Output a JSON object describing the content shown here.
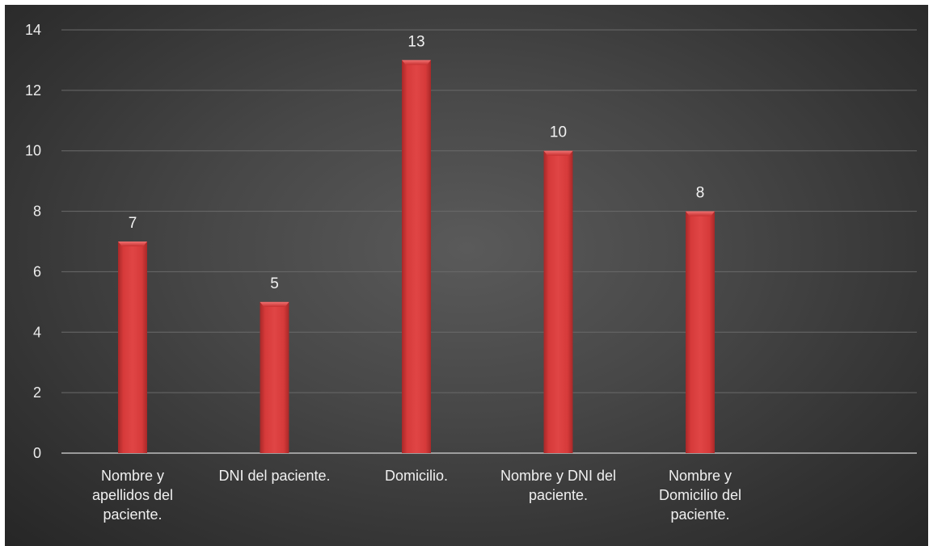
{
  "chart_data": {
    "type": "bar",
    "categories": [
      "Nombre y apellidos del paciente.",
      "DNI del paciente.",
      "Domicilio.",
      "Nombre y DNI del paciente.",
      "Nombre y Domicilio del paciente."
    ],
    "category_lines": [
      [
        "Nombre y",
        "apellidos del",
        "paciente."
      ],
      [
        "DNI del paciente."
      ],
      [
        "Domicilio."
      ],
      [
        "Nombre y DNI del",
        "paciente."
      ],
      [
        "Nombre y",
        "Domicilio del",
        "paciente."
      ]
    ],
    "values": [
      7,
      5,
      13,
      10,
      8
    ],
    "data_labels": [
      "7",
      "5",
      "13",
      "10",
      "8"
    ],
    "yticks": [
      0,
      2,
      4,
      6,
      8,
      10,
      12,
      14
    ],
    "ylim": [
      0,
      14
    ],
    "grid": true,
    "legend": "none",
    "title": "",
    "xlabel": "",
    "ylabel": "",
    "colors": {
      "bar": "#d63a3a",
      "bar_dark": "#a82828",
      "bar_light": "#e85a5a",
      "background": "#474747",
      "text": "#ececec"
    }
  }
}
